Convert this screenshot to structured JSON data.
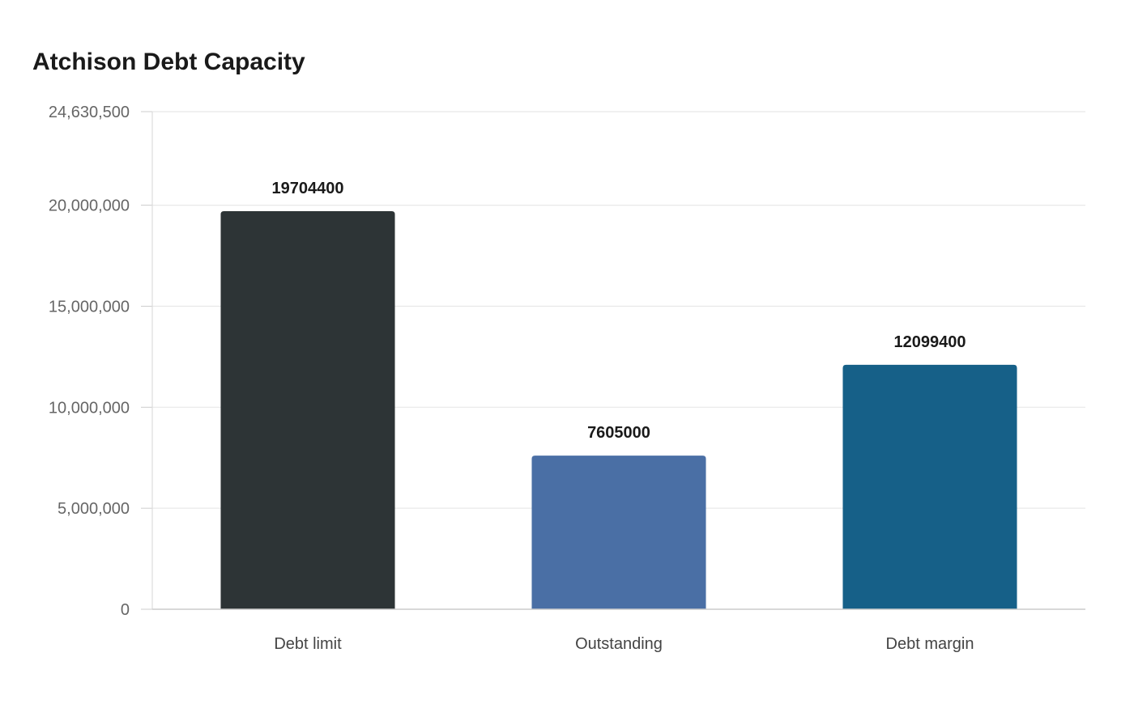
{
  "title": "Atchison Debt Capacity",
  "chart_data": {
    "type": "bar",
    "title": "Atchison Debt Capacity",
    "categories": [
      "Debt limit",
      "Outstanding",
      "Debt margin"
    ],
    "values": [
      19704400,
      7605000,
      12099400
    ],
    "data_labels": [
      "19704400",
      "7605000",
      "12099400"
    ],
    "colors": [
      "#2d3436",
      "#4a6fa5",
      "#166088"
    ],
    "xlabel": "",
    "ylabel": "",
    "ylim": [
      0,
      24630500
    ],
    "y_ticks": [
      0,
      5000000,
      10000000,
      15000000,
      20000000,
      24630500
    ],
    "y_tick_labels": [
      "0",
      "5,000,000",
      "10,000,000",
      "15,000,000",
      "20,000,000",
      "24,630,500"
    ],
    "grid": true,
    "legend": "none"
  }
}
